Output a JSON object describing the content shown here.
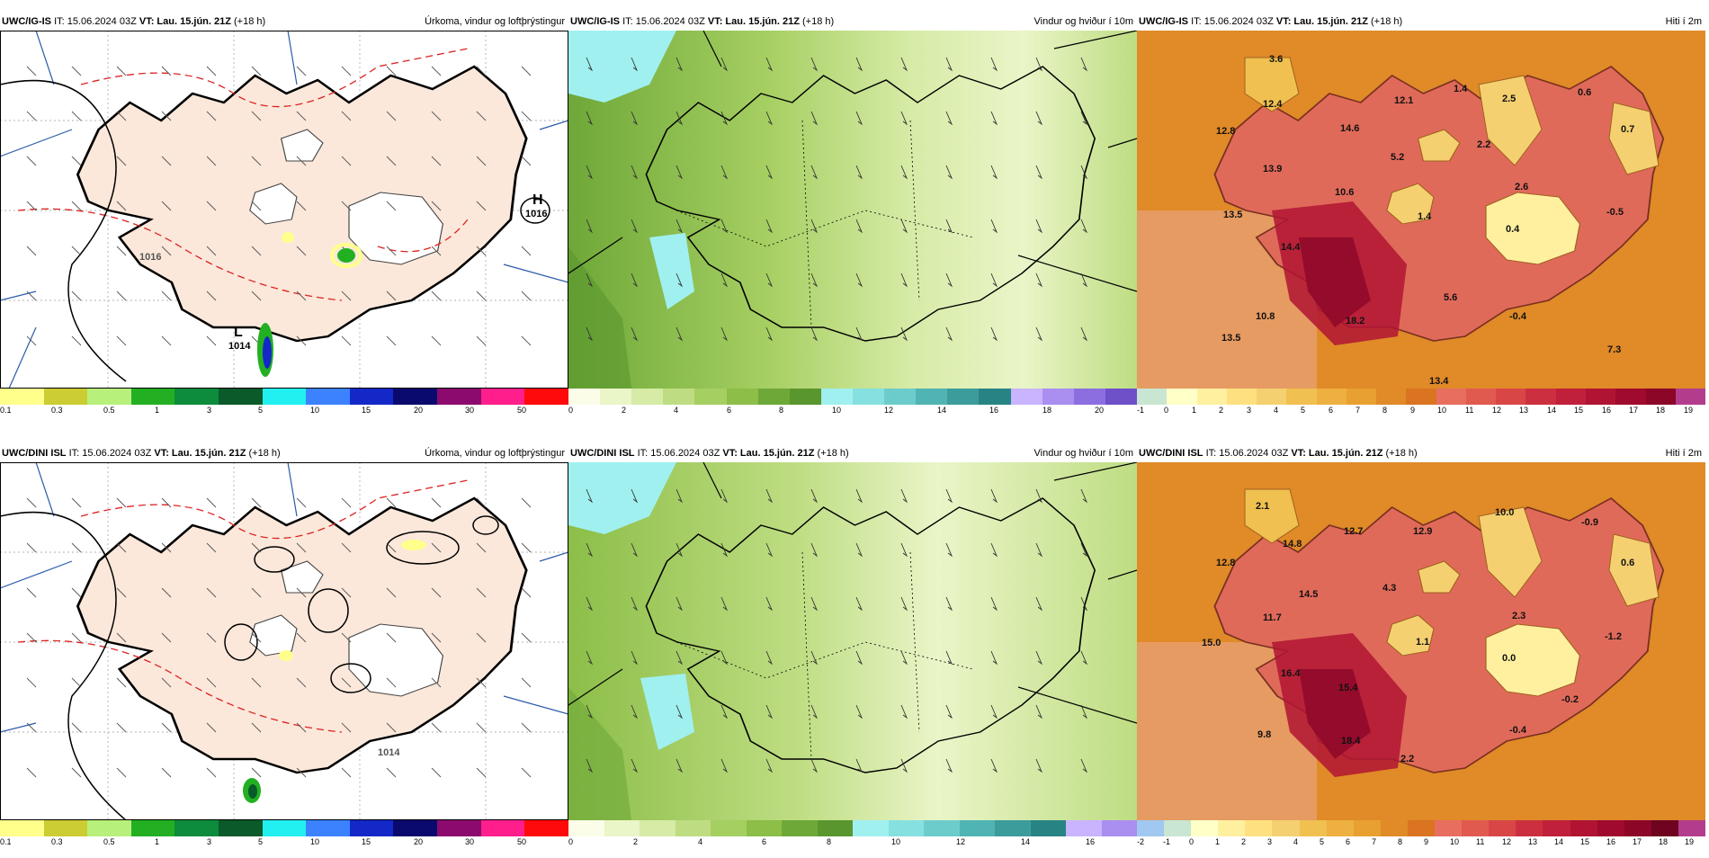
{
  "panels": [
    {
      "id": "p1",
      "source": "UWC/IG-IS",
      "it": "IT: 15.06.2024 03Z",
      "vt_label": "VT:",
      "vt": "Lau. 15.jún. 21Z",
      "lead": "(+18 h)",
      "title": "Úrkoma, vindur og loftþrýstingur",
      "colorbar": {
        "colors": [
          "#ffff8c",
          "#cccc33",
          "#b7f07a",
          "#22b022",
          "#0c8c3c",
          "#0a5a2a",
          "#22f0f0",
          "#3c82ff",
          "#1428c8",
          "#0a0a6e",
          "#8c0a6e",
          "#ff1e8c",
          "#ff0a0a"
        ],
        "ticks": [
          "0.1",
          "0.3",
          "0.5",
          "1",
          "3",
          "5",
          "10",
          "15",
          "20",
          "30",
          "50"
        ]
      },
      "labels": [
        {
          "text": "H"
        },
        {
          "text": "1016"
        },
        {
          "text": "L"
        },
        {
          "text": "1014"
        },
        {
          "text": "1016"
        }
      ]
    },
    {
      "id": "p2",
      "source": "UWC/IG-IS",
      "it": "IT: 15.06.2024 03Z",
      "vt_label": "VT:",
      "vt": "Lau. 15.jún. 21Z",
      "lead": "(+18 h)",
      "title": "Vindur og hviður í 10m",
      "colorbar": {
        "colors": [
          "#fbfde8",
          "#eaf5c8",
          "#d6eba6",
          "#bedd82",
          "#a6cf62",
          "#8cbe48",
          "#6ea838",
          "#5a962e",
          "#a0f0f0",
          "#86e0e0",
          "#6ccccc",
          "#50b4b4",
          "#3c9c9c",
          "#288484",
          "#c8b4ff",
          "#aa8ef0",
          "#8c6ee0",
          "#6e50c8"
        ],
        "ticks": [
          "0",
          "2",
          "4",
          "6",
          "8",
          "10",
          "12",
          "14",
          "16",
          "18",
          "20"
        ]
      },
      "labels": []
    },
    {
      "id": "p3",
      "source": "UWC/IG-IS",
      "it": "IT: 15.06.2024 03Z",
      "vt_label": "VT:",
      "vt": "Lau. 15.jún. 21Z",
      "lead": "(+18 h)",
      "title": "Hiti í 2m",
      "colorbar": {
        "colors": [
          "#c8e6d2",
          "#ffffc8",
          "#fff0a0",
          "#ffe080",
          "#f5d070",
          "#f0c050",
          "#eeb040",
          "#e8a030",
          "#e08a28",
          "#da7420",
          "#e86e60",
          "#e05a50",
          "#d84646",
          "#cc3040",
          "#c0203a",
          "#b01432",
          "#a00a2e",
          "#8c0628",
          "#b43c8c"
        ],
        "ticks": [
          "-1",
          "0",
          "1",
          "2",
          "3",
          "4",
          "5",
          "6",
          "7",
          "8",
          "9",
          "10",
          "11",
          "12",
          "13",
          "14",
          "15",
          "16",
          "17",
          "18",
          "19"
        ]
      },
      "labels": [
        {
          "text": "3.6"
        },
        {
          "text": "12.4"
        },
        {
          "text": "12.8"
        },
        {
          "text": "12.1"
        },
        {
          "text": "1.4"
        },
        {
          "text": "2.5"
        },
        {
          "text": "0.6"
        },
        {
          "text": "0.7"
        },
        {
          "text": "14.6"
        },
        {
          "text": "5.2"
        },
        {
          "text": "2.2"
        },
        {
          "text": "13.9"
        },
        {
          "text": "10.6"
        },
        {
          "text": "2.6"
        },
        {
          "text": "13.5"
        },
        {
          "text": "1.4"
        },
        {
          "text": "0.4"
        },
        {
          "text": "-0.5"
        },
        {
          "text": "14.4"
        },
        {
          "text": "5.6"
        },
        {
          "text": "10.8"
        },
        {
          "text": "18.2"
        },
        {
          "text": "-0.4"
        },
        {
          "text": "13.5"
        },
        {
          "text": "7.3"
        },
        {
          "text": "13.4"
        }
      ]
    },
    {
      "id": "p4",
      "source": "UWC/DINI ISL",
      "it": "IT: 15.06.2024 03Z",
      "vt_label": "VT:",
      "vt": "Lau. 15.jún. 21Z",
      "lead": "(+18 h)",
      "title": "Úrkoma, vindur og loftþrýstingur",
      "colorbar": {
        "colors": [
          "#ffff8c",
          "#cccc33",
          "#b7f07a",
          "#22b022",
          "#0c8c3c",
          "#0a5a2a",
          "#22f0f0",
          "#3c82ff",
          "#1428c8",
          "#0a0a6e",
          "#8c0a6e",
          "#ff1e8c",
          "#ff0a0a"
        ],
        "ticks": [
          "0.1",
          "0.3",
          "0.5",
          "1",
          "3",
          "5",
          "10",
          "15",
          "20",
          "30",
          "50"
        ]
      },
      "labels": [
        {
          "text": "1014"
        }
      ]
    },
    {
      "id": "p5",
      "source": "UWC/DINI ISL",
      "it": "IT: 15.06.2024 03Z",
      "vt_label": "VT:",
      "vt": "Lau. 15.jún. 21Z",
      "lead": "(+18 h)",
      "title": "Vindur og hviður í 10m",
      "colorbar": {
        "colors": [
          "#fbfde8",
          "#eaf5c8",
          "#d6eba6",
          "#bedd82",
          "#a6cf62",
          "#8cbe48",
          "#6ea838",
          "#5a962e",
          "#a0f0f0",
          "#86e0e0",
          "#6ccccc",
          "#50b4b4",
          "#3c9c9c",
          "#288484",
          "#c8b4ff",
          "#aa8ef0"
        ],
        "ticks": [
          "0",
          "2",
          "4",
          "6",
          "8",
          "10",
          "12",
          "14",
          "16"
        ]
      },
      "labels": []
    },
    {
      "id": "p6",
      "source": "UWC/DINI ISL",
      "it": "IT: 15.06.2024 03Z",
      "vt_label": "VT:",
      "vt": "Lau. 15.jún. 21Z",
      "lead": "(+18 h)",
      "title": "Hiti í 2m",
      "colorbar": {
        "colors": [
          "#a0c8f0",
          "#c8e6d2",
          "#ffffc8",
          "#fff0a0",
          "#ffe080",
          "#f5d070",
          "#f0c050",
          "#eeb040",
          "#e8a030",
          "#e08a28",
          "#da7420",
          "#e86e60",
          "#e05a50",
          "#d84646",
          "#cc3040",
          "#c0203a",
          "#b01432",
          "#a00a2e",
          "#8c0628",
          "#6e0420",
          "#b43c8c"
        ],
        "ticks": [
          "-2",
          "-1",
          "0",
          "1",
          "2",
          "3",
          "4",
          "5",
          "6",
          "7",
          "8",
          "9",
          "10",
          "11",
          "12",
          "13",
          "14",
          "15",
          "16",
          "17",
          "18",
          "19"
        ]
      },
      "labels": [
        {
          "text": "2.1"
        },
        {
          "text": "10.0"
        },
        {
          "text": "-0.9"
        },
        {
          "text": "14.8"
        },
        {
          "text": "12.7"
        },
        {
          "text": "12.9"
        },
        {
          "text": "12.8"
        },
        {
          "text": "0.6"
        },
        {
          "text": "14.5"
        },
        {
          "text": "4.3"
        },
        {
          "text": "11.7"
        },
        {
          "text": "2.3"
        },
        {
          "text": "15.0"
        },
        {
          "text": "1.1"
        },
        {
          "text": "0.0"
        },
        {
          "text": "-1.2"
        },
        {
          "text": "16.4"
        },
        {
          "text": "15.4"
        },
        {
          "text": "-0.2"
        },
        {
          "text": "9.8"
        },
        {
          "text": "18.4"
        },
        {
          "text": "-0.4"
        },
        {
          "text": "2.2"
        }
      ]
    }
  ]
}
